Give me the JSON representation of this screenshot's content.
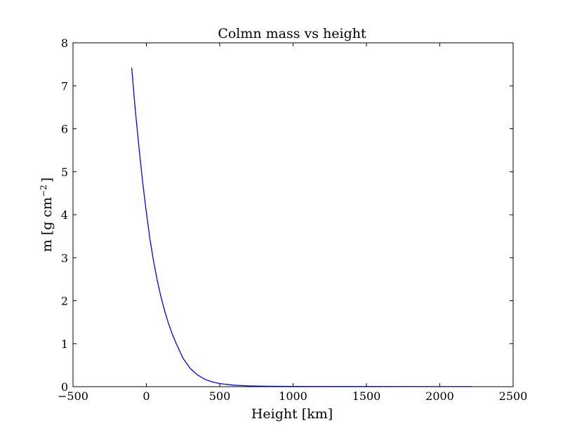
{
  "chart_data": {
    "type": "line",
    "title": "Colmn mass vs height",
    "xlabel": "Height [km]",
    "ylabel_text": "m [g cm",
    "ylabel_exponent": "−2",
    "ylabel_suffix": "]",
    "xlim": [
      -500,
      2500
    ],
    "ylim": [
      0,
      8
    ],
    "xticks": [
      -500,
      0,
      500,
      1000,
      1500,
      2000,
      2500
    ],
    "yticks": [
      0,
      1,
      2,
      3,
      4,
      5,
      6,
      7,
      8
    ],
    "xtick_labels": [
      "−500",
      "0",
      "500",
      "1000",
      "1500",
      "2000",
      "2500"
    ],
    "ytick_labels": [
      "0",
      "1",
      "2",
      "3",
      "4",
      "5",
      "6",
      "7",
      "8"
    ],
    "grid": false,
    "legend": "none",
    "series": [
      {
        "color": "#0000ff",
        "x": [
          -100,
          -75,
          -50,
          -25,
          0,
          25,
          50,
          75,
          100,
          125,
          150,
          175,
          200,
          250,
          300,
          350,
          400,
          450,
          500,
          600,
          700,
          800,
          1000,
          1200,
          1500,
          1800,
          2000,
          2220
        ],
        "y": [
          7.42,
          6.42,
          5.55,
          4.75,
          4.05,
          3.42,
          2.9,
          2.46,
          2.08,
          1.76,
          1.48,
          1.24,
          1.03,
          0.66,
          0.42,
          0.27,
          0.17,
          0.11,
          0.072,
          0.034,
          0.018,
          0.011,
          0.006,
          0.004,
          0.003,
          0.002,
          0.002,
          0.002
        ]
      }
    ]
  }
}
